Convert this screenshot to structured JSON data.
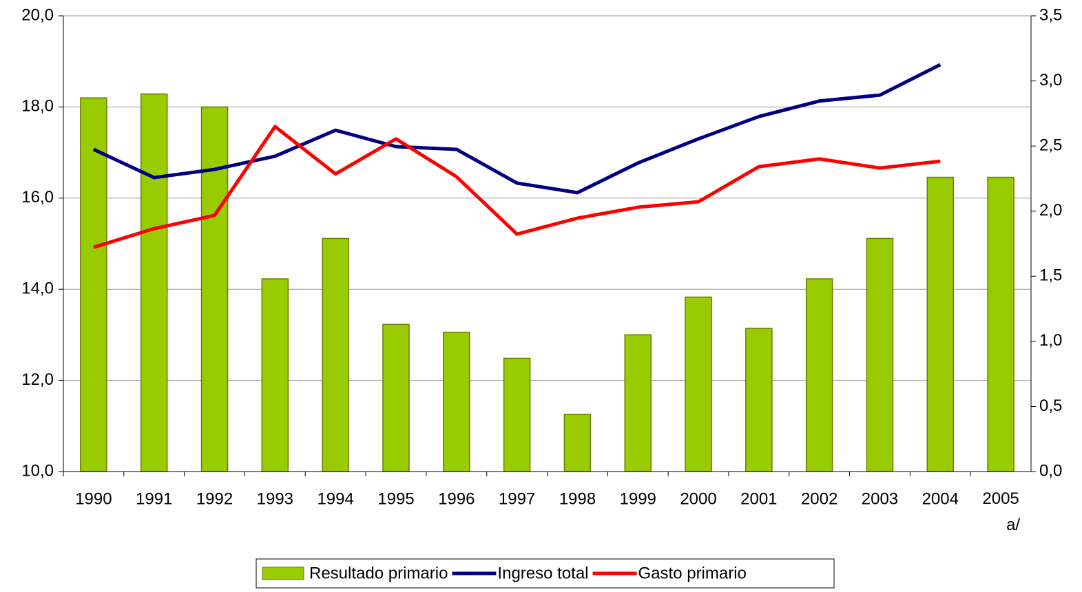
{
  "chart_data": {
    "type": "bar-line",
    "categories": [
      "1990",
      "1991",
      "1992",
      "1993",
      "1994",
      "1995",
      "1996",
      "1997",
      "1998",
      "1999",
      "2000",
      "2001",
      "2002",
      "2003",
      "2004",
      "2005 a/"
    ],
    "series": [
      {
        "name": "Resultado primario",
        "type": "bar",
        "axis": "y2",
        "color": "#99cc00",
        "values": [
          2.87,
          2.9,
          2.8,
          1.48,
          1.79,
          1.13,
          1.07,
          0.87,
          0.44,
          1.05,
          1.34,
          1.1,
          1.48,
          1.79,
          2.26,
          2.26
        ]
      },
      {
        "name": "Ingreso total",
        "type": "line",
        "color": "#000080",
        "values": [
          17.07,
          16.45,
          16.63,
          16.92,
          17.49,
          17.13,
          17.07,
          16.33,
          16.12,
          16.77,
          17.3,
          17.79,
          18.13,
          18.26,
          18.93,
          null
        ]
      },
      {
        "name": "Gasto primario",
        "type": "line",
        "color": "#ff0000",
        "values": [
          14.92,
          15.33,
          15.62,
          17.57,
          16.53,
          17.3,
          16.47,
          15.21,
          15.56,
          15.8,
          15.92,
          16.69,
          16.86,
          16.66,
          16.81,
          null
        ]
      }
    ],
    "ylim": [
      10,
      20
    ],
    "yticks": [
      {
        "value": 10,
        "label": "10,0"
      },
      {
        "value": 12,
        "label": "12,0"
      },
      {
        "value": 14,
        "label": "14,0"
      },
      {
        "value": 16,
        "label": "16,0"
      },
      {
        "value": 18,
        "label": "18,0"
      },
      {
        "value": 20,
        "label": "20,0"
      }
    ],
    "y2lim": [
      0,
      3.5
    ],
    "y2ticks": [
      {
        "value": 0,
        "label": "0,0"
      },
      {
        "value": 0.5,
        "label": "0,5"
      },
      {
        "value": 1,
        "label": "1,0"
      },
      {
        "value": 1.5,
        "label": "1,5"
      },
      {
        "value": 2,
        "label": "2,0"
      },
      {
        "value": 2.5,
        "label": "2,5"
      },
      {
        "value": 3,
        "label": "3,0"
      },
      {
        "value": 3.5,
        "label": "3,5"
      }
    ],
    "grid": true,
    "legend": "bottom"
  }
}
